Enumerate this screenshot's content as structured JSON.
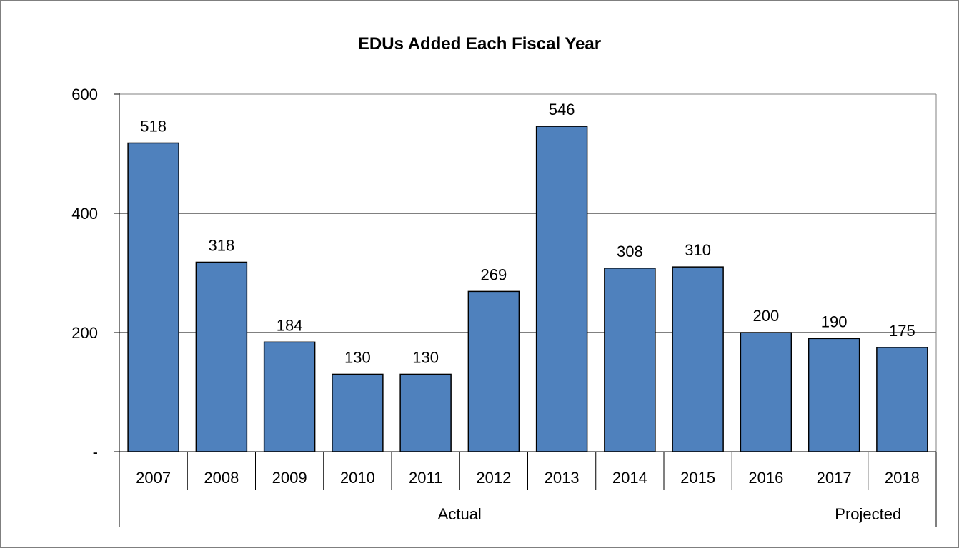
{
  "chart_data": {
    "type": "bar",
    "title": "EDUs Added Each Fiscal Year",
    "xlabel": "",
    "ylabel": "",
    "categories": [
      "2007",
      "2008",
      "2009",
      "2010",
      "2011",
      "2012",
      "2013",
      "2014",
      "2015",
      "2016",
      "2017",
      "2018"
    ],
    "values": [
      518,
      318,
      184,
      130,
      130,
      269,
      546,
      308,
      310,
      200,
      190,
      175
    ],
    "data_labels": [
      "518",
      "318",
      "184",
      "130",
      "130",
      "269",
      "546",
      "308",
      "310",
      "200",
      "190",
      "175"
    ],
    "category_groups": [
      {
        "label": "Actual",
        "categories": [
          "2007",
          "2008",
          "2009",
          "2010",
          "2011",
          "2012",
          "2013",
          "2014",
          "2015",
          "2016"
        ]
      },
      {
        "label": "Projected",
        "categories": [
          "2017",
          "2018"
        ]
      }
    ],
    "yticks": [
      {
        "value": 0,
        "label": "-"
      },
      {
        "value": 200,
        "label": "200"
      },
      {
        "value": 400,
        "label": "400"
      },
      {
        "value": 600,
        "label": "600"
      }
    ],
    "ylim": [
      0,
      600
    ],
    "grid": true,
    "legend": "none",
    "colors": {
      "bar": "#4f81bd",
      "bar_edge": "#000000",
      "grid": "#000000",
      "frame": "#808080"
    }
  }
}
